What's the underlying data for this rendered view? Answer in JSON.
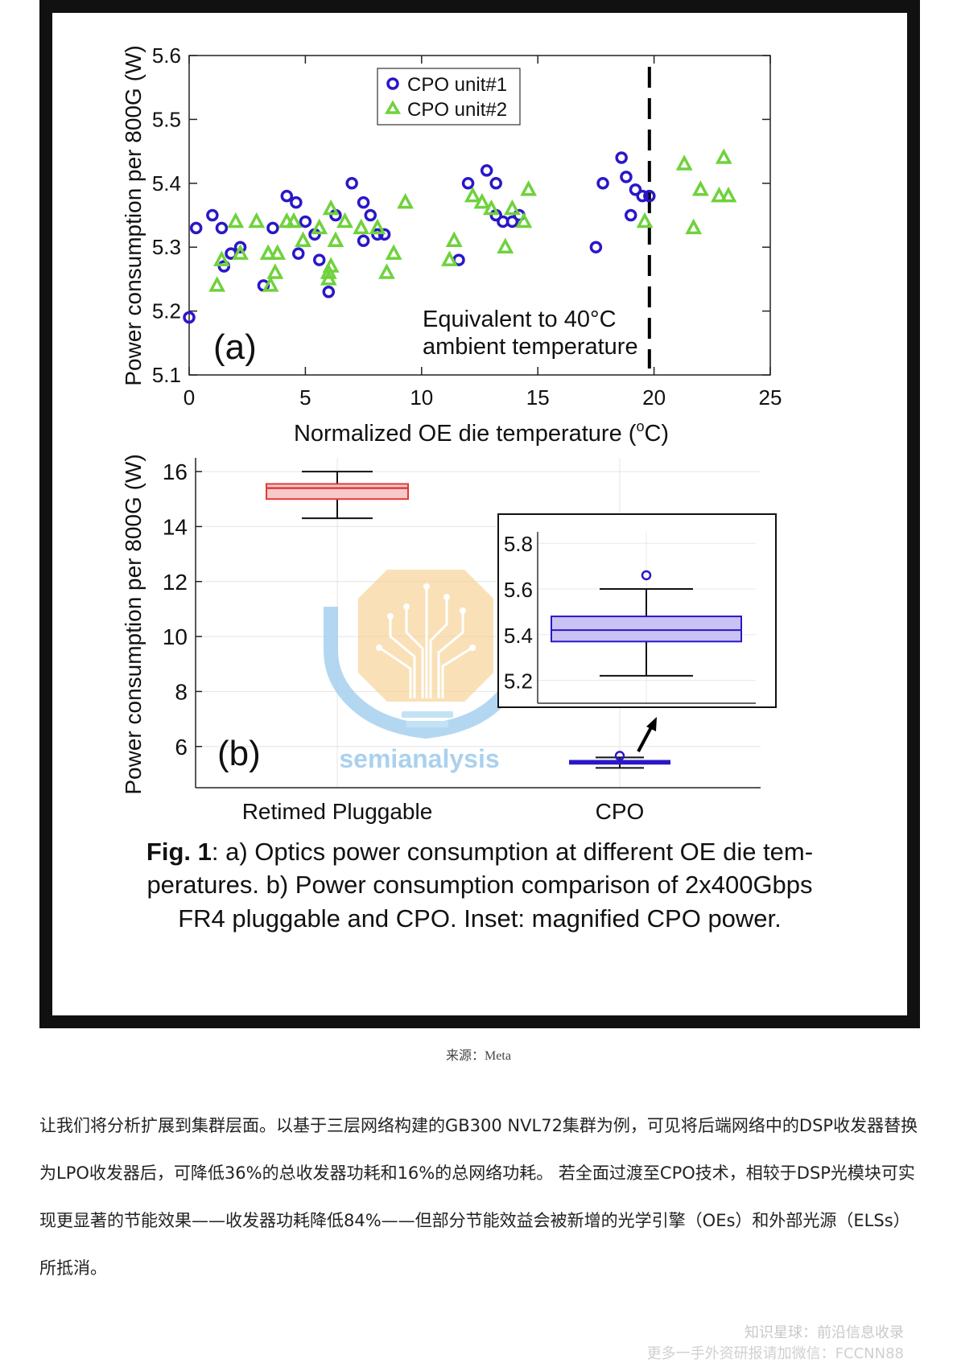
{
  "chart_data": [
    {
      "type": "scatter",
      "panel_label": "(a)",
      "xlabel": "Normalized OE die temperature (°C)",
      "xlabel_main": "Normalized OE die temperature (",
      "xlabel_sup": "o",
      "xlabel_end": "C)",
      "ylabel": "Power consumption per 800G (W)",
      "xlim": [
        0,
        25
      ],
      "ylim": [
        5.1,
        5.6
      ],
      "xticks": [
        "0",
        "5",
        "10",
        "15",
        "20",
        "25"
      ],
      "yticks": [
        "5.1",
        "5.2",
        "5.3",
        "5.4",
        "5.5",
        "5.6"
      ],
      "grid": false,
      "legend_position": "top-center",
      "annotation": {
        "x": 19.8,
        "line1": "Equivalent to 40°C",
        "line2": "ambient temperature"
      },
      "series": [
        {
          "name": "CPO unit#1",
          "marker": "circle",
          "color": "#2a17c8",
          "points": [
            [
              0.0,
              5.19
            ],
            [
              0.3,
              5.33
            ],
            [
              1.0,
              5.35
            ],
            [
              1.4,
              5.33
            ],
            [
              1.5,
              5.27
            ],
            [
              1.8,
              5.29
            ],
            [
              2.2,
              5.3
            ],
            [
              3.2,
              5.24
            ],
            [
              3.6,
              5.33
            ],
            [
              4.2,
              5.38
            ],
            [
              4.6,
              5.37
            ],
            [
              4.7,
              5.29
            ],
            [
              5.0,
              5.34
            ],
            [
              5.4,
              5.32
            ],
            [
              5.6,
              5.28
            ],
            [
              6.0,
              5.23
            ],
            [
              6.3,
              5.35
            ],
            [
              7.0,
              5.4
            ],
            [
              7.5,
              5.37
            ],
            [
              7.5,
              5.31
            ],
            [
              7.8,
              5.35
            ],
            [
              8.1,
              5.32
            ],
            [
              8.4,
              5.32
            ],
            [
              12.0,
              5.4
            ],
            [
              11.6,
              5.28
            ],
            [
              12.8,
              5.42
            ],
            [
              13.2,
              5.4
            ],
            [
              13.2,
              5.35
            ],
            [
              13.5,
              5.34
            ],
            [
              13.9,
              5.34
            ],
            [
              14.2,
              5.35
            ],
            [
              17.5,
              5.3
            ],
            [
              17.8,
              5.4
            ],
            [
              18.6,
              5.44
            ],
            [
              18.8,
              5.41
            ],
            [
              19.0,
              5.35
            ],
            [
              19.2,
              5.39
            ],
            [
              19.5,
              5.38
            ],
            [
              19.8,
              5.38
            ]
          ]
        },
        {
          "name": "CPO unit#2",
          "marker": "triangle",
          "color": "#6fd23c",
          "points": [
            [
              1.2,
              5.24
            ],
            [
              1.4,
              5.28
            ],
            [
              2.0,
              5.34
            ],
            [
              2.2,
              5.29
            ],
            [
              2.9,
              5.34
            ],
            [
              3.4,
              5.29
            ],
            [
              3.5,
              5.24
            ],
            [
              3.7,
              5.26
            ],
            [
              3.8,
              5.29
            ],
            [
              4.2,
              5.34
            ],
            [
              4.5,
              5.34
            ],
            [
              4.9,
              5.31
            ],
            [
              5.6,
              5.33
            ],
            [
              6.0,
              5.25
            ],
            [
              6.0,
              5.26
            ],
            [
              6.1,
              5.27
            ],
            [
              6.1,
              5.36
            ],
            [
              6.3,
              5.31
            ],
            [
              6.7,
              5.34
            ],
            [
              7.4,
              5.33
            ],
            [
              8.1,
              5.33
            ],
            [
              8.5,
              5.26
            ],
            [
              8.8,
              5.29
            ],
            [
              9.3,
              5.37
            ],
            [
              11.2,
              5.28
            ],
            [
              11.4,
              5.31
            ],
            [
              12.2,
              5.38
            ],
            [
              12.6,
              5.37
            ],
            [
              13.0,
              5.36
            ],
            [
              13.6,
              5.3
            ],
            [
              13.9,
              5.36
            ],
            [
              14.4,
              5.34
            ],
            [
              14.6,
              5.39
            ],
            [
              19.6,
              5.34
            ],
            [
              21.3,
              5.43
            ],
            [
              21.7,
              5.33
            ],
            [
              22.0,
              5.39
            ],
            [
              22.8,
              5.38
            ],
            [
              23.0,
              5.44
            ],
            [
              23.2,
              5.38
            ]
          ]
        }
      ]
    },
    {
      "type": "box",
      "panel_label": "(b)",
      "xlabel": "",
      "ylabel": "Power consumption per 800G (W)",
      "categories": [
        "Retimed Pluggable",
        "CPO"
      ],
      "ylim": [
        4.5,
        16.5
      ],
      "yticks": [
        "6",
        "8",
        "10",
        "12",
        "14",
        "16"
      ],
      "grid": true,
      "boxes": [
        {
          "category": "Retimed Pluggable",
          "color": "#e03a3a",
          "fill": "#f7c9c9",
          "whisker_low": 14.3,
          "q1": 15.0,
          "median": 15.4,
          "q3": 15.55,
          "whisker_high": 16.0,
          "outliers": []
        },
        {
          "category": "CPO",
          "color": "#2a17c8",
          "fill": "#c9c2f2",
          "whisker_low": 5.22,
          "q1": 5.37,
          "median": 5.42,
          "q3": 5.48,
          "whisker_high": 5.6,
          "outliers": [
            5.66
          ]
        }
      ],
      "inset": {
        "title": "magnified CPO power",
        "ylim": [
          5.1,
          5.85
        ],
        "yticks": [
          "5.2",
          "5.4",
          "5.6",
          "5.8"
        ]
      }
    }
  ],
  "watermark_brand": "semianalysis",
  "caption": {
    "bold": "Fig. 1",
    "line1": ": a) Optics power consumption at different OE die tem-",
    "line2": "peratures. b) Power consumption comparison of 2x400Gbps",
    "line3": "FR4 pluggable and CPO. Inset: magnified CPO power."
  },
  "source": "来源：Meta",
  "article": "让我们将分析扩展到集群层面。以基于三层网络构建的GB300 NVL72集群为例，可见将后端网络中的DSP收发器替换为LPO收发器后，可降低36%的总收发器功耗和16%的总网络功耗。 若全面过渡至CPO技术，相较于DSP光模块可实现更显著的节能效果——收发器功耗降低84%——但部分节能效益会被新增的光学引擎（OEs）和外部光源（ELSs）所抵消。",
  "footer": {
    "line1": "知识星球：前沿信息收录",
    "line2": "更多一手外资研报请加微信：FCCNN88"
  }
}
